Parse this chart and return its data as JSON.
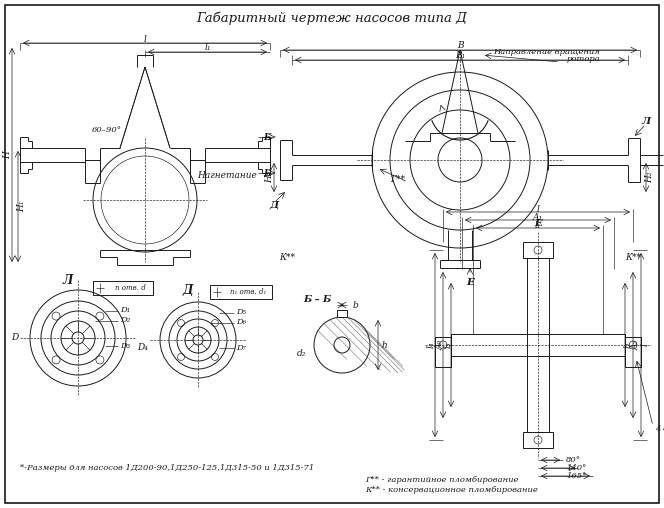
{
  "title": "Габаритный чертеж насосов типа Д",
  "bg_color": "#ffffff",
  "line_color": "#1a1a1a",
  "title_fontsize": 9.5,
  "fs": 6.5,
  "footnote1": "*-Размеры для насосов 1Д200-90,1Д250-125,1Д315-50 и 1Д315-71",
  "footnote2": "Г** - гарантийное пломбирование",
  "footnote3": "К** - консервационное пломбирование"
}
